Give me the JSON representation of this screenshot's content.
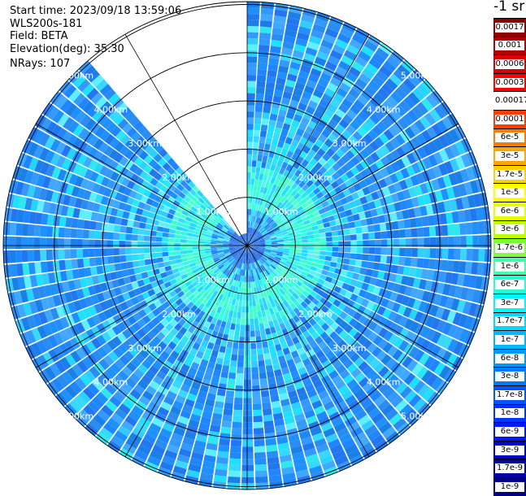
{
  "header": {
    "start_time": "Start time: 2023/09/18 13:59:06",
    "site": "WLS200s-181",
    "field": "Field: BETA",
    "elevation": "Elevation(deg): 35.30",
    "nrays": "NRays: 107"
  },
  "chart_data": {
    "type": "heatmap",
    "projection": "polar PPI",
    "ring_labels": [
      "1.00km",
      "2.00km",
      "3.00km",
      "4.00km",
      "5.00km"
    ],
    "ring_distances_km": [
      1,
      2,
      3,
      4,
      5
    ],
    "max_range_km": 5.0,
    "missing_sector_deg": [
      -42,
      0
    ],
    "colorbar": {
      "unit": "-1 sr",
      "labels": [
        "0.0017",
        "0.001",
        "0.0006",
        "0.0003",
        "0.00017",
        "0.0001",
        "6e-5",
        "3e-5",
        "1.7e-5",
        "1e-5",
        "6e-6",
        "3e-6",
        "1.7e-6",
        "1e-6",
        "6e-7",
        "3e-7",
        "1.7e-7",
        "1e-7",
        "6e-8",
        "3e-8",
        "1.7e-8",
        "1e-8",
        "6e-9",
        "3e-9",
        "1.7e-9",
        "1e-9"
      ],
      "colors": [
        "#8b0000",
        "#b30000",
        "#d90000",
        "#ff0000",
        "#ffffff",
        "#ff3d00",
        "#ff7a00",
        "#ffa500",
        "#ffd000",
        "#ffff00",
        "#e6ff00",
        "#c0ff00",
        "#7fff3a",
        "#40ffaa",
        "#20ffd8",
        "#00f5ff",
        "#00d8ff",
        "#00b8ff",
        "#0098ff",
        "#0078ff",
        "#0055ff",
        "#0035ff",
        "#0018f0",
        "#0000d0",
        "#0000a8",
        "#000080"
      ]
    }
  }
}
